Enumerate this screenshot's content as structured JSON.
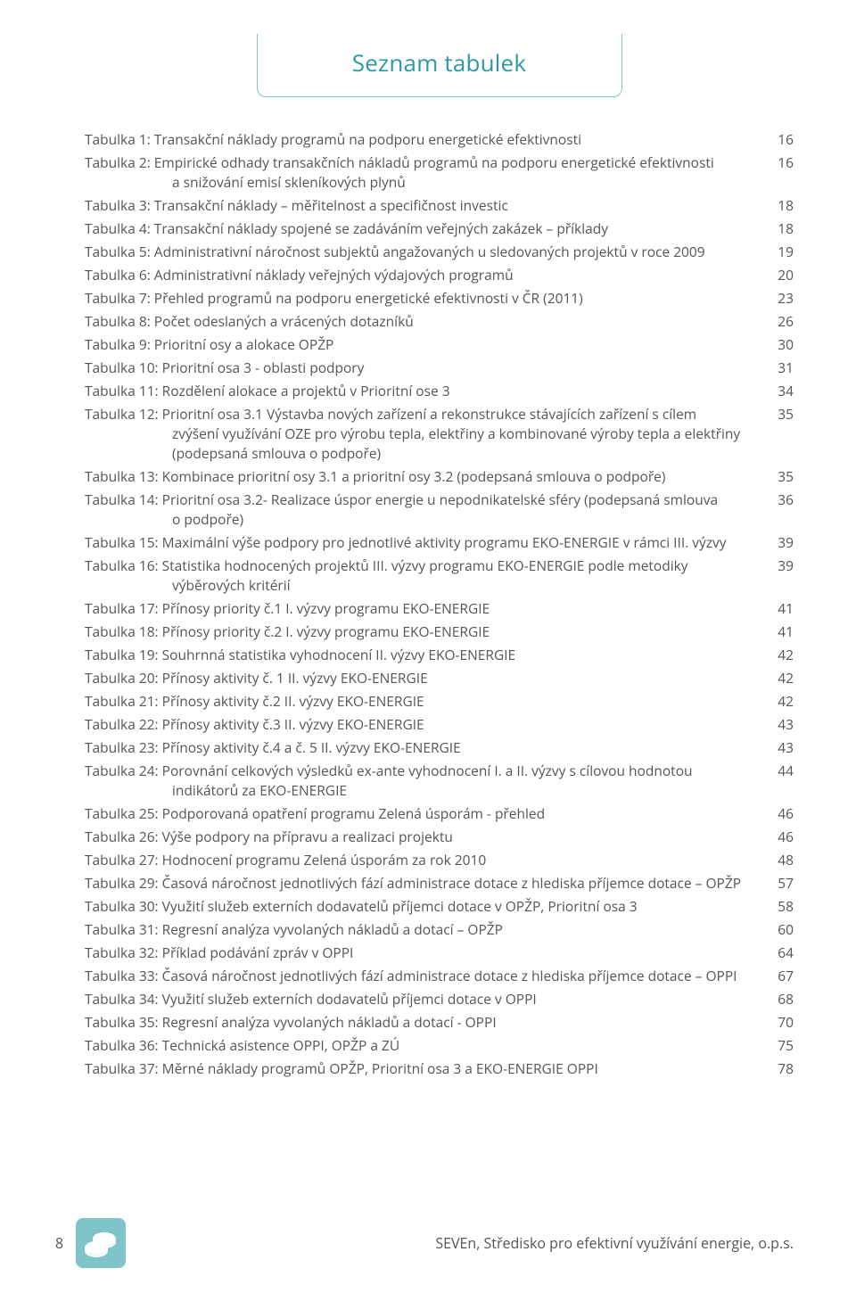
{
  "colors": {
    "accent": "#2b99a4",
    "border": "#7fc4c9",
    "text": "#4d4d4d",
    "icon_bg": "#7fc4c9",
    "icon_fg": "#ffffff",
    "background": "#ffffff"
  },
  "typography": {
    "title_fontsize": 26,
    "body_fontsize": 15.5,
    "footer_fontsize": 16,
    "line_height": 1.42
  },
  "title": "Seznam tabulek",
  "toc": [
    {
      "label": "Tabulka 1: Transakční náklady programů na podporu energetické efektivnosti",
      "page": "16"
    },
    {
      "label": "Tabulka 2: Empirické odhady transakčních nákladů programů na podporu energetické efektivnosti",
      "indent": "a snižování emisí skleníkových plynů",
      "page": "16"
    },
    {
      "label": "Tabulka 3: Transakční náklady – měřitelnost a specifičnost investic",
      "page": "18"
    },
    {
      "label": "Tabulka 4: Transakční náklady spojené se zadáváním veřejných zakázek – příklady",
      "page": "18"
    },
    {
      "label": "Tabulka 5: Administrativní náročnost subjektů angažovaných u sledovaných projektů v roce 2009",
      "page": "19"
    },
    {
      "label": "Tabulka 6: Administrativní náklady veřejných výdajových programů",
      "page": "20"
    },
    {
      "label": "Tabulka 7: Přehled programů na podporu energetické efektivnosti v ČR (2011)",
      "page": "23"
    },
    {
      "label": "Tabulka 8: Počet odeslaných a vrácených dotazníků",
      "page": "26"
    },
    {
      "label": "Tabulka 9: Prioritní osy a alokace OPŽP",
      "page": "30"
    },
    {
      "label": "Tabulka 10: Prioritní osa 3 - oblasti podpory",
      "page": "31"
    },
    {
      "label": "Tabulka 11: Rozdělení alokace a projektů v Prioritní ose 3",
      "page": "34"
    },
    {
      "label": "Tabulka 12: Prioritní osa 3.1 Výstavba nových zařízení a rekonstrukce stávajících zařízení s cílem",
      "indent": "zvýšení využívání OZE pro výrobu tepla, elektřiny a kombinované výroby tepla a elektřiny (podepsaná smlouva o podpoře)",
      "page": "35"
    },
    {
      "label": "Tabulka 13: Kombinace prioritní osy 3.1 a prioritní osy 3.2 (podepsaná smlouva o podpoře)",
      "page": "35"
    },
    {
      "label": "Tabulka 14: Prioritní osa 3.2- Realizace úspor energie u nepodnikatelské sféry (podepsaná smlouva",
      "indent": "o podpoře)",
      "page": "36"
    },
    {
      "label": "Tabulka 15: Maximální výše podpory pro jednotlivé aktivity programu EKO-ENERGIE v rámci III. výzvy",
      "page": "39"
    },
    {
      "label": "Tabulka 16: Statistika hodnocených projektů III. výzvy programu EKO-ENERGIE podle metodiky",
      "indent": "výběrových kritérií",
      "page": "39"
    },
    {
      "label": "Tabulka 17: Přínosy priority č.1 I. výzvy programu EKO-ENERGIE",
      "page": "41"
    },
    {
      "label": "Tabulka 18: Přínosy priority č.2 I. výzvy programu EKO-ENERGIE",
      "page": "41"
    },
    {
      "label": "Tabulka 19: Souhrnná statistika vyhodnocení II. výzvy EKO-ENERGIE",
      "page": "42"
    },
    {
      "label": "Tabulka 20: Přínosy aktivity č. 1 II. výzvy EKO-ENERGIE",
      "page": "42"
    },
    {
      "label": "Tabulka 21: Přínosy aktivity č.2 II. výzvy EKO-ENERGIE",
      "page": "42"
    },
    {
      "label": "Tabulka 22: Přínosy aktivity č.3 II. výzvy EKO-ENERGIE",
      "page": "43"
    },
    {
      "label": "Tabulka 23: Přínosy aktivity č.4 a č. 5 II. výzvy EKO-ENERGIE",
      "page": "43"
    },
    {
      "label": "Tabulka 24: Porovnání celkových výsledků ex-ante vyhodnocení I. a II. výzvy s cílovou hodnotou",
      "indent": "indikátorů za EKO-ENERGIE",
      "page": "44"
    },
    {
      "label": "Tabulka 25: Podporovaná opatření programu Zelená úsporám - přehled",
      "page": "46"
    },
    {
      "label": "Tabulka 26: Výše podpory na přípravu a realizaci projektu",
      "page": "46"
    },
    {
      "label": "Tabulka 27: Hodnocení programu Zelená úsporám za rok 2010",
      "page": "48"
    },
    {
      "label": "Tabulka 29: Časová náročnost jednotlivých fází administrace dotace z hlediska příjemce dotace – OPŽP",
      "page": "57"
    },
    {
      "label": "Tabulka 30: Využití služeb externích dodavatelů příjemci dotace v OPŽP, Prioritní osa 3",
      "page": "58"
    },
    {
      "label": "Tabulka 31: Regresní analýza vyvolaných nákladů a dotací – OPŽP",
      "page": "60"
    },
    {
      "label": "Tabulka 32: Příklad podávání zpráv v OPPI",
      "page": "64"
    },
    {
      "label": "Tabulka 33: Časová náročnost jednotlivých fází administrace dotace z hlediska příjemce dotace – OPPI",
      "page": "67"
    },
    {
      "label": "Tabulka 34: Využití služeb externích dodavatelů příjemci dotace v  OPPI",
      "page": "68"
    },
    {
      "label": "Tabulka 35: Regresní analýza vyvolaných nákladů a dotací - OPPI",
      "page": "70"
    },
    {
      "label": "Tabulka 36: Technická asistence OPPI, OPŽP a ZÚ",
      "page": "75"
    },
    {
      "label": "Tabulka 37: Měrné náklady programů OPŽP, Prioritní osa 3 a EKO-ENERGIE OPPI",
      "page": "78"
    }
  ],
  "footer": {
    "page_number": "8",
    "publisher": "SEVEn, Středisko pro efektivní využívání energie, o.p.s."
  }
}
